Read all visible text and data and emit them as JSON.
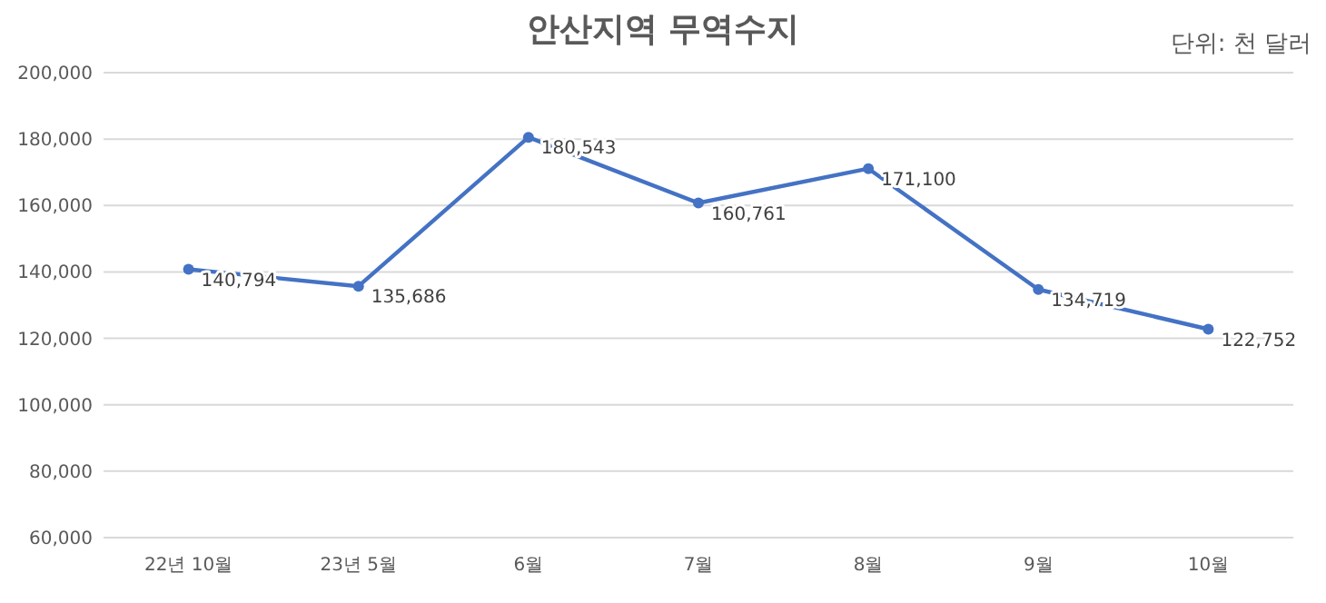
{
  "chart_data": {
    "type": "line",
    "title": "안산지역 무역수지",
    "annotations": [
      "단위: 천 달러"
    ],
    "categories": [
      "22년 10월",
      "23년 5월",
      "6월",
      "7월",
      "8월",
      "9월",
      "10월"
    ],
    "series": [
      {
        "color": "#4472c4",
        "values": [
          140794,
          135686,
          180543,
          160761,
          171100,
          134719,
          122752
        ],
        "value_labels": [
          "140,794",
          "135,686",
          "180,543",
          "160,761",
          "171,100",
          "134,719",
          "122,752"
        ]
      }
    ],
    "ylim": [
      60000,
      200000
    ],
    "yticks": [
      {
        "value": 60000,
        "label": "60,000"
      },
      {
        "value": 80000,
        "label": "80,000"
      },
      {
        "value": 100000,
        "label": "100,000"
      },
      {
        "value": 120000,
        "label": "120,000"
      },
      {
        "value": 140000,
        "label": "140,000"
      },
      {
        "value": 160000,
        "label": "160,000"
      },
      {
        "value": 180000,
        "label": "180,000"
      },
      {
        "value": 200000,
        "label": "200,000"
      }
    ],
    "grid": "y",
    "marker": "circle",
    "line_style": "solid"
  }
}
